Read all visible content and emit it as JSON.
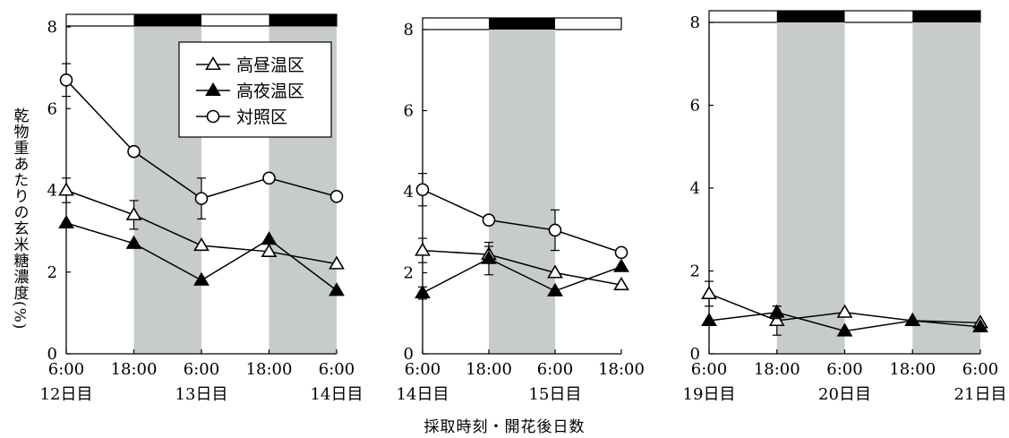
{
  "figure": {
    "ylabel": "乾物重あたりの玄米糖濃度(%)",
    "xlabel": "採取時刻・開花後日数"
  },
  "legend": {
    "items": [
      {
        "label": "高昼温区",
        "series": "high_day"
      },
      {
        "label": "高夜温区",
        "series": "high_night"
      },
      {
        "label": "対照区",
        "series": "control"
      }
    ]
  },
  "colors": {
    "night_band": "#c8cbcb",
    "line": "#000000",
    "day_bar": "#ffffff",
    "night_bar": "#000000"
  },
  "chart_data": [
    {
      "type": "line",
      "ylim": [
        0,
        8
      ],
      "yticks": [
        "0",
        "2",
        "4",
        "6",
        "8"
      ],
      "x": [
        0,
        12,
        24,
        36,
        48
      ],
      "xlim": [
        0,
        48
      ],
      "xticks": [
        {
          "x": 0,
          "time": "6:00",
          "day": "12日目"
        },
        {
          "x": 12,
          "time": "18:00",
          "day": ""
        },
        {
          "x": 24,
          "time": "6:00",
          "day": "13日目"
        },
        {
          "x": 36,
          "time": "18:00",
          "day": ""
        },
        {
          "x": 48,
          "time": "6:00",
          "day": "14日目"
        }
      ],
      "night_periods": [
        [
          12,
          24
        ],
        [
          36,
          48
        ]
      ],
      "legend": true,
      "series": [
        {
          "name": "高昼温区",
          "marker": "triangle-open",
          "values": [
            4.0,
            3.4,
            2.65,
            2.5,
            2.2
          ],
          "errors": [
            0.3,
            0.35,
            0,
            0,
            0
          ]
        },
        {
          "name": "高夜温区",
          "marker": "triangle-filled",
          "values": [
            3.2,
            2.7,
            1.8,
            2.8,
            1.55
          ],
          "errors": [
            0,
            0,
            0,
            0,
            0
          ]
        },
        {
          "name": "対照区",
          "marker": "circle-open",
          "values": [
            6.7,
            4.95,
            3.8,
            4.3,
            3.85
          ],
          "errors": [
            0.4,
            0,
            0.5,
            0,
            0
          ]
        }
      ]
    },
    {
      "type": "line",
      "ylim": [
        0,
        8
      ],
      "yticks": [
        "0",
        "2",
        "4",
        "6",
        "8"
      ],
      "x": [
        0,
        12,
        24,
        36
      ],
      "xlim": [
        0,
        36
      ],
      "xticks": [
        {
          "x": 0,
          "time": "6:00",
          "day": "14日目"
        },
        {
          "x": 12,
          "time": "18:00",
          "day": ""
        },
        {
          "x": 24,
          "time": "6:00",
          "day": "15日目"
        },
        {
          "x": 36,
          "time": "18:00",
          "day": ""
        }
      ],
      "night_periods": [
        [
          12,
          24
        ]
      ],
      "legend": false,
      "series": [
        {
          "name": "高昼温区",
          "marker": "triangle-open",
          "values": [
            2.55,
            2.45,
            2.0,
            1.7
          ],
          "errors": [
            0.3,
            0.2,
            0,
            0
          ]
        },
        {
          "name": "高夜温区",
          "marker": "triangle-filled",
          "values": [
            1.5,
            2.35,
            1.55,
            2.15
          ],
          "errors": [
            0.15,
            0.4,
            0,
            0
          ]
        },
        {
          "name": "対照区",
          "marker": "circle-open",
          "values": [
            4.05,
            3.3,
            3.05,
            2.5
          ],
          "errors": [
            0.4,
            0,
            0.5,
            0
          ]
        }
      ]
    },
    {
      "type": "line",
      "ylim": [
        0,
        8
      ],
      "yticks": [
        "0",
        "2",
        "4",
        "6",
        "8"
      ],
      "x": [
        0,
        12,
        24,
        36,
        48
      ],
      "xlim": [
        0,
        48
      ],
      "xticks": [
        {
          "x": 0,
          "time": "6:00",
          "day": "19日目"
        },
        {
          "x": 12,
          "time": "18:00",
          "day": ""
        },
        {
          "x": 24,
          "time": "6:00",
          "day": "20日目"
        },
        {
          "x": 36,
          "time": "18:00",
          "day": ""
        },
        {
          "x": 48,
          "time": "6:00",
          "day": "21日目"
        }
      ],
      "night_periods": [
        [
          12,
          24
        ],
        [
          36,
          48
        ]
      ],
      "legend": false,
      "series": [
        {
          "name": "高昼温区",
          "marker": "triangle-open",
          "values": [
            1.45,
            0.8,
            1.0,
            0.8,
            0.75
          ],
          "errors": [
            0.3,
            0.35,
            0,
            0,
            0
          ]
        },
        {
          "name": "高夜温区",
          "marker": "triangle-filled",
          "values": [
            0.8,
            1.0,
            0.55,
            0.8,
            0.65
          ],
          "errors": [
            0,
            0.15,
            0,
            0,
            0
          ]
        },
        {
          "name": "対照区",
          "marker": "circle-open",
          "values": [
            null,
            null,
            null,
            null,
            null
          ],
          "errors": [
            0,
            0,
            0,
            0,
            0
          ]
        }
      ]
    }
  ]
}
